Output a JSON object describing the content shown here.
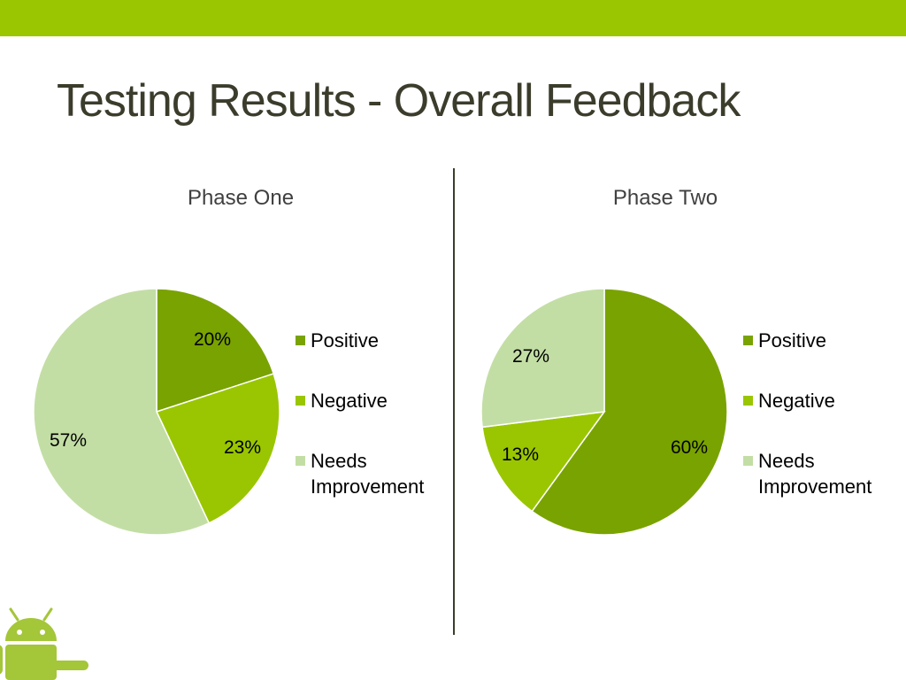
{
  "slide": {
    "title": "Testing Results - Overall Feedback"
  },
  "colors": {
    "top_bar": "#99c600",
    "positive": "#79a300",
    "negative": "#99c600",
    "needs_improvement": "#c3dea5",
    "title_text": "#3c3c2c"
  },
  "legend_labels": [
    "Positive",
    "Negative",
    "Needs Improvement"
  ],
  "chart_data": [
    {
      "type": "pie",
      "title": "Phase One",
      "categories": [
        "Positive",
        "Negative",
        "Needs Improvement"
      ],
      "values": [
        20,
        23,
        57
      ],
      "data_labels": [
        "20%",
        "23%",
        "57%"
      ],
      "colors": [
        "#79a300",
        "#99c600",
        "#c3dea5"
      ],
      "legend_position": "right"
    },
    {
      "type": "pie",
      "title": "Phase Two",
      "categories": [
        "Positive",
        "Negative",
        "Needs Improvement"
      ],
      "values": [
        60,
        13,
        27
      ],
      "data_labels": [
        "60%",
        "13%",
        "27%"
      ],
      "colors": [
        "#79a300",
        "#99c600",
        "#c3dea5"
      ],
      "legend_position": "right"
    }
  ],
  "logo": {
    "icon": "android-robot-icon"
  }
}
